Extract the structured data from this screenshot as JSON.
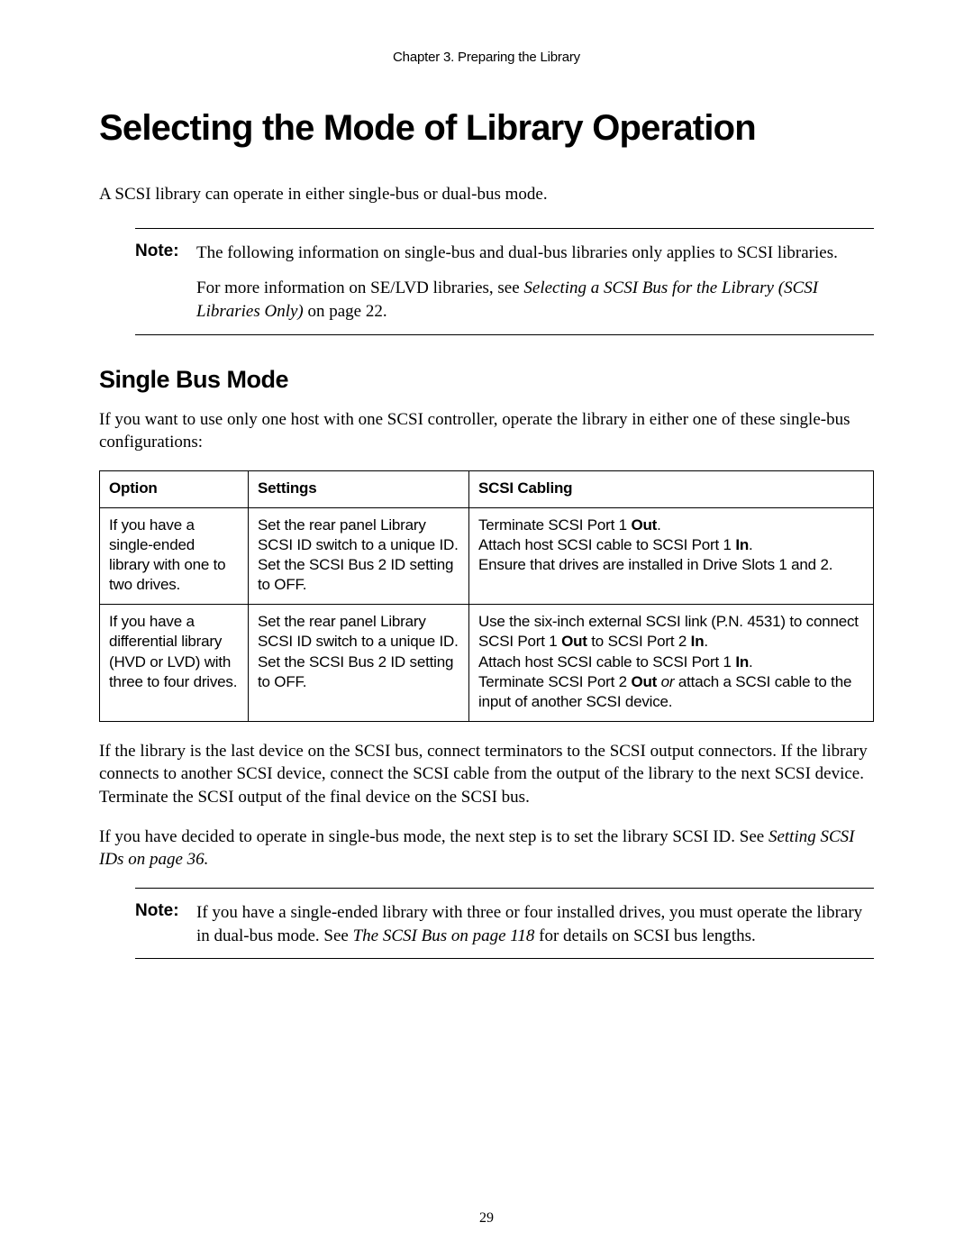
{
  "chapter_header": "Chapter 3.  Preparing the Library",
  "main_title": "Selecting the Mode of Library Operation",
  "intro": "A SCSI library can operate in either single-bus or dual-bus mode.",
  "note1": {
    "label": "Note:",
    "p1": "The following information on single-bus and dual-bus libraries only applies to SCSI libraries.",
    "p2a": "For more information on SE/LVD libraries, see ",
    "p2b_ital": "Selecting a SCSI Bus for the Library (SCSI Libraries Only)",
    "p2c": " on page 22."
  },
  "sub_title": "Single Bus Mode",
  "sub_intro": "If you want to use only one host with one SCSI controller, operate the library in either one of these single-bus configurations:",
  "table": {
    "headers": {
      "c1": "Option",
      "c2": "Settings",
      "c3": "SCSI Cabling"
    },
    "row1": {
      "option": "If you have a single-ended library with one to two drives.",
      "settings_l1": "Set the rear panel Library SCSI ID switch to a unique ID.",
      "settings_l2": "Set the SCSI Bus 2 ID setting to OFF.",
      "cabling_l1a": "Terminate SCSI Port 1 ",
      "cabling_l1b": "Out",
      "cabling_l1c": ".",
      "cabling_l2a": "Attach host SCSI cable to SCSI Port 1 ",
      "cabling_l2b": "In",
      "cabling_l2c": ".",
      "cabling_l3": "Ensure that drives are installed in Drive Slots 1 and 2."
    },
    "row2": {
      "option": "If you have a differential library (HVD or LVD) with three to four drives.",
      "settings_l1": "Set the rear panel Library SCSI ID switch to a unique ID.",
      "settings_l2": "Set the SCSI Bus 2 ID setting to OFF.",
      "cabling_l1a": "Use the six-inch external SCSI link (P.N. 4531) to connect SCSI Port 1 ",
      "cabling_l1b": "Out",
      "cabling_l1c": " to SCSI Port 2 ",
      "cabling_l1d": "In",
      "cabling_l1e": ".",
      "cabling_l2a": "Attach host SCSI cable to SCSI Port 1 ",
      "cabling_l2b": "In",
      "cabling_l2c": ".",
      "cabling_l3a": "Terminate SCSI Port 2 ",
      "cabling_l3b": "Out",
      "cabling_l3c_ital": " or",
      "cabling_l3d": " attach a SCSI cable to the input of another SCSI device."
    }
  },
  "after_table_p1": "If the library is the last device on the SCSI bus, connect terminators to the SCSI output connectors. If the library connects to another SCSI device, connect the SCSI cable from the output of the library to the next SCSI device. Terminate the SCSI output of the final device on the SCSI bus.",
  "after_table_p2a": "If you have decided to operate in single-bus mode, the next step is to set the library SCSI ID. See ",
  "after_table_p2b_ital": "Setting SCSI IDs on page 36.",
  "note2": {
    "label": "Note:",
    "p1a": "If you have a single-ended library with three or four installed drives, you must operate the library in dual-bus mode. See ",
    "p1b_ital": "The SCSI Bus on page 118",
    "p1c": " for details on SCSI bus lengths."
  },
  "page_number": "29",
  "colors": {
    "text": "#000000",
    "background": "#ffffff",
    "border": "#000000"
  }
}
